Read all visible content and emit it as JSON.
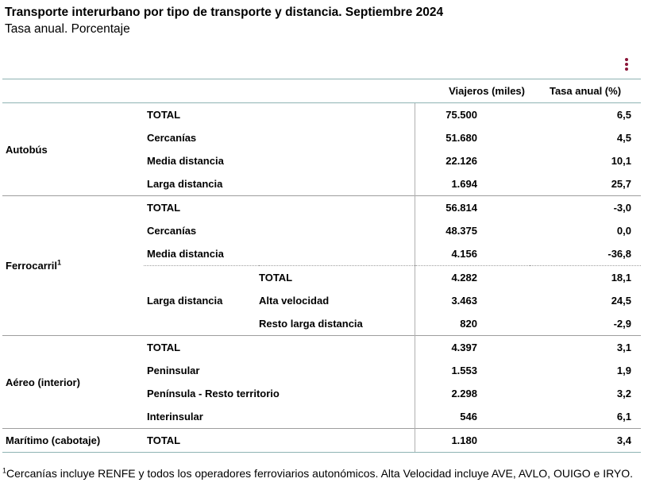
{
  "title": "Transporte interurbano por tipo de transporte y distancia. Septiembre 2024",
  "subtitle": "Tasa anual. Porcentaje",
  "menu_icon": "kebab-menu-icon",
  "colors": {
    "menu": "#8b1538",
    "header_rule": "#8fb3b3"
  },
  "chart_data": {
    "type": "table",
    "columns": [
      "Viajeros (miles)",
      "Tasa anual (%)"
    ],
    "groups": [
      {
        "name": "Autobús",
        "rows": [
          {
            "label": "TOTAL",
            "viajeros": "75.500",
            "tasa": "6,5"
          },
          {
            "label": "Cercanías",
            "viajeros": "51.680",
            "tasa": "4,5"
          },
          {
            "label": "Media distancia",
            "viajeros": "22.126",
            "tasa": "10,1"
          },
          {
            "label": "Larga distancia",
            "viajeros": "1.694",
            "tasa": "25,7"
          }
        ]
      },
      {
        "name": "Ferrocarril",
        "sup": "1",
        "rows": [
          {
            "label": "TOTAL",
            "viajeros": "56.814",
            "tasa": "-3,0"
          },
          {
            "label": "Cercanías",
            "viajeros": "48.375",
            "tasa": "0,0"
          },
          {
            "label": "Media distancia",
            "viajeros": "4.156",
            "tasa": "-36,8"
          }
        ],
        "subgroup": {
          "name": "Larga distancia",
          "rows": [
            {
              "label": "TOTAL",
              "viajeros": "4.282",
              "tasa": "18,1"
            },
            {
              "label": "Alta velocidad",
              "viajeros": "3.463",
              "tasa": "24,5"
            },
            {
              "label": "Resto larga distancia",
              "viajeros": "820",
              "tasa": "-2,9"
            }
          ]
        }
      },
      {
        "name": "Aéreo (interior)",
        "rows": [
          {
            "label": "TOTAL",
            "viajeros": "4.397",
            "tasa": "3,1"
          },
          {
            "label": "Peninsular",
            "viajeros": "1.553",
            "tasa": "1,9"
          },
          {
            "label": "Península - Resto territorio",
            "viajeros": "2.298",
            "tasa": "3,2"
          },
          {
            "label": "Interinsular",
            "viajeros": "546",
            "tasa": "6,1"
          }
        ]
      },
      {
        "name": "Marítimo (cabotaje)",
        "rows": [
          {
            "label": "TOTAL",
            "viajeros": "1.180",
            "tasa": "3,4"
          }
        ]
      }
    ]
  },
  "footnote": {
    "marker": "1",
    "text": "Cercanías incluye RENFE y todos los operadores ferroviarios autonómicos. Alta Velocidad incluye AVE, AVLO, OUIGO e IRYO."
  }
}
